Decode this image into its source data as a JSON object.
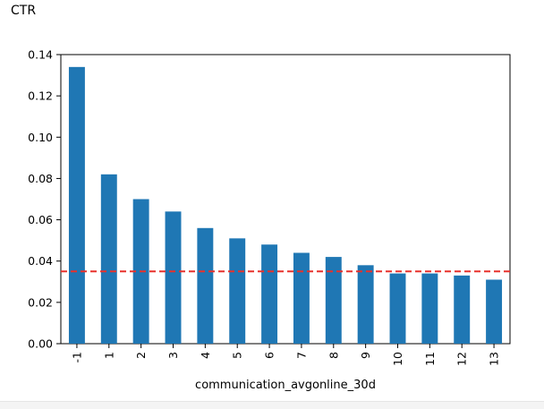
{
  "cell_label": "CTR",
  "chart_data": {
    "type": "bar",
    "title": "",
    "xlabel": "communication_avgonline_30d",
    "ylabel": "",
    "categories": [
      "-1",
      "1",
      "2",
      "3",
      "4",
      "5",
      "6",
      "7",
      "8",
      "9",
      "10",
      "11",
      "12",
      "13"
    ],
    "values": [
      0.134,
      0.082,
      0.07,
      0.064,
      0.056,
      0.051,
      0.048,
      0.044,
      0.042,
      0.038,
      0.034,
      0.034,
      0.033,
      0.031
    ],
    "ylim": [
      0,
      0.14
    ],
    "yticks": [
      "0.00",
      "0.02",
      "0.04",
      "0.06",
      "0.08",
      "0.10",
      "0.12",
      "0.14"
    ],
    "reference_line": {
      "value": 0.035,
      "style": "dashed",
      "color": "#e8312b"
    },
    "bar_color": "#1f77b4",
    "grid": false,
    "legend": "none"
  }
}
